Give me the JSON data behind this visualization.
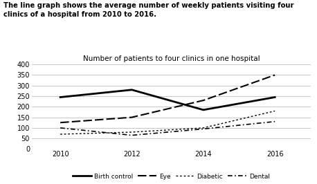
{
  "title": "Number of patients to four clinics in one hospital",
  "suptitle_line1": "The line graph shows the average number of weekly patients visiting four",
  "suptitle_line2": "clinics of a hospital from 2010 to 2016.",
  "years": [
    2010,
    2012,
    2014,
    2016
  ],
  "birth_control": [
    245,
    280,
    185,
    245
  ],
  "eye": [
    125,
    150,
    230,
    350
  ],
  "diabetic": [
    70,
    80,
    100,
    180
  ],
  "dental": [
    100,
    65,
    95,
    130
  ],
  "ylim": [
    0,
    400
  ],
  "yticks": [
    0,
    50,
    100,
    150,
    200,
    250,
    300,
    350,
    400
  ],
  "xticks": [
    2010,
    2012,
    2014,
    2016
  ],
  "line_color": "#000000",
  "bg_color": "#ffffff",
  "grid_color": "#bebebe"
}
